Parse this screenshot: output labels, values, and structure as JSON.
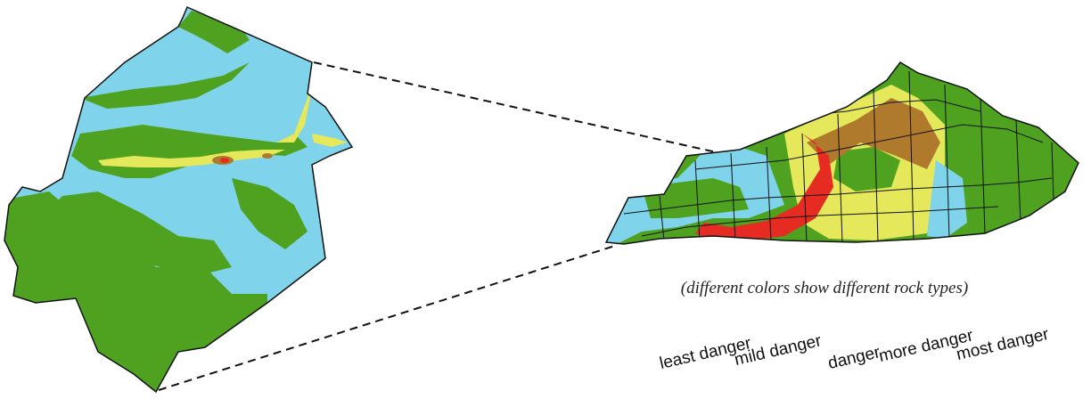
{
  "caption": "(different colors show different rock types)",
  "legend": [
    {
      "label": "least danger",
      "color": "#7fd3ea"
    },
    {
      "label": "mild danger",
      "color": "#4ea21f"
    },
    {
      "label": "danger",
      "color": "#e4e85a"
    },
    {
      "label": "more danger",
      "color": "#b07a2c"
    },
    {
      "label": "most danger",
      "color": "#e52b22"
    }
  ],
  "colors": {
    "low": "#7fd3ea",
    "mild": "#4ea21f",
    "medium": "#e4e85a",
    "high": "#b07a2c",
    "highest": "#e52b22",
    "border": "#111111"
  },
  "icons": {
    "county_map": "county-detail-map",
    "state_map": "kentucky-state-map"
  }
}
